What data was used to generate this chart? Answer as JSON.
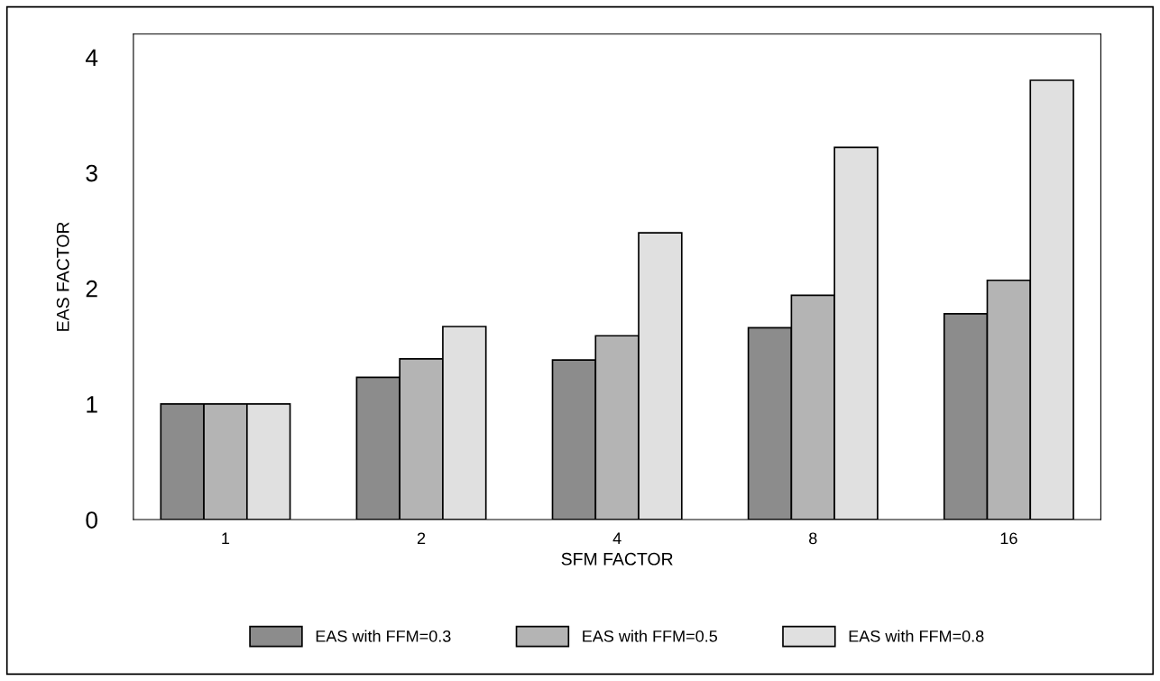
{
  "chart_data": {
    "type": "bar",
    "xlabel": "SFM FACTOR",
    "ylabel": "EAS FACTOR",
    "categories": [
      "1",
      "2",
      "4",
      "8",
      "16"
    ],
    "series": [
      {
        "name": "EAS with FFM=0.3",
        "color": "#8c8c8c",
        "values": [
          1.0,
          1.23,
          1.38,
          1.66,
          1.78
        ]
      },
      {
        "name": "EAS with FFM=0.5",
        "color": "#b4b4b4",
        "values": [
          1.0,
          1.39,
          1.59,
          1.94,
          2.07
        ]
      },
      {
        "name": "EAS with FFM=0.8",
        "color": "#e0e0e0",
        "values": [
          1.0,
          1.67,
          2.48,
          3.22,
          3.8
        ]
      }
    ],
    "ylim": [
      0,
      4.2
    ],
    "yticks": [
      0,
      1,
      2,
      3,
      4
    ],
    "grid": false,
    "legend": "bottom"
  }
}
